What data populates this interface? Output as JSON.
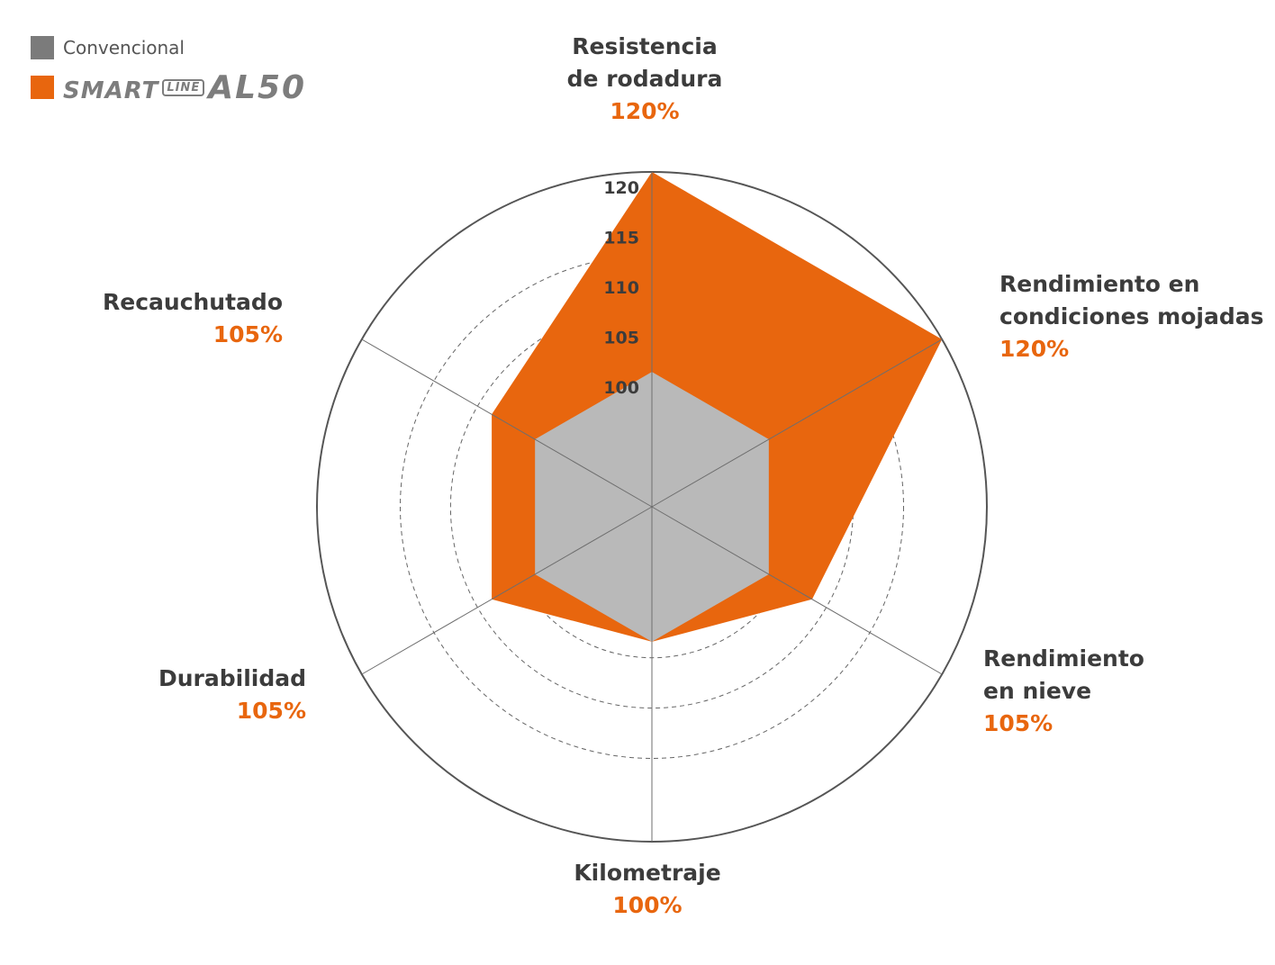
{
  "legend": {
    "items": [
      {
        "label": "Convencional",
        "color": "#7b7b7b"
      },
      {
        "label": "SMART LINE AL50",
        "color": "#e8660e"
      }
    ],
    "brand": {
      "part1": "SMART",
      "part2": "LINE",
      "part3": "AL50"
    }
  },
  "chart_data": {
    "type": "radar",
    "axes": [
      {
        "name": "Resistencia de rodadura",
        "lines": [
          "Resistencia",
          "de rodadura"
        ],
        "value_label": "120%"
      },
      {
        "name": "Rendimiento en condiciones mojadas",
        "lines": [
          "Rendimiento en",
          "condiciones mojadas"
        ],
        "value_label": "120%"
      },
      {
        "name": "Rendimiento en nieve",
        "lines": [
          "Rendimiento",
          "en nieve"
        ],
        "value_label": "105%"
      },
      {
        "name": "Kilometraje",
        "lines": [
          "Kilometraje"
        ],
        "value_label": "100%"
      },
      {
        "name": "Durabilidad",
        "lines": [
          "Durabilidad"
        ],
        "value_label": "105%"
      },
      {
        "name": "Recauchutado",
        "lines": [
          "Recauchutado"
        ],
        "value_label": "105%"
      }
    ],
    "series": [
      {
        "name": "Convencional",
        "values": [
          100,
          100,
          100,
          100,
          100,
          100
        ],
        "color": "#b9b9b9"
      },
      {
        "name": "SMART LINE AL50",
        "values": [
          120,
          120,
          105,
          100,
          105,
          105
        ],
        "color": "#e8660e"
      }
    ],
    "ticks": [
      100,
      105,
      110,
      115,
      120
    ],
    "range": [
      86.5,
      120
    ]
  }
}
